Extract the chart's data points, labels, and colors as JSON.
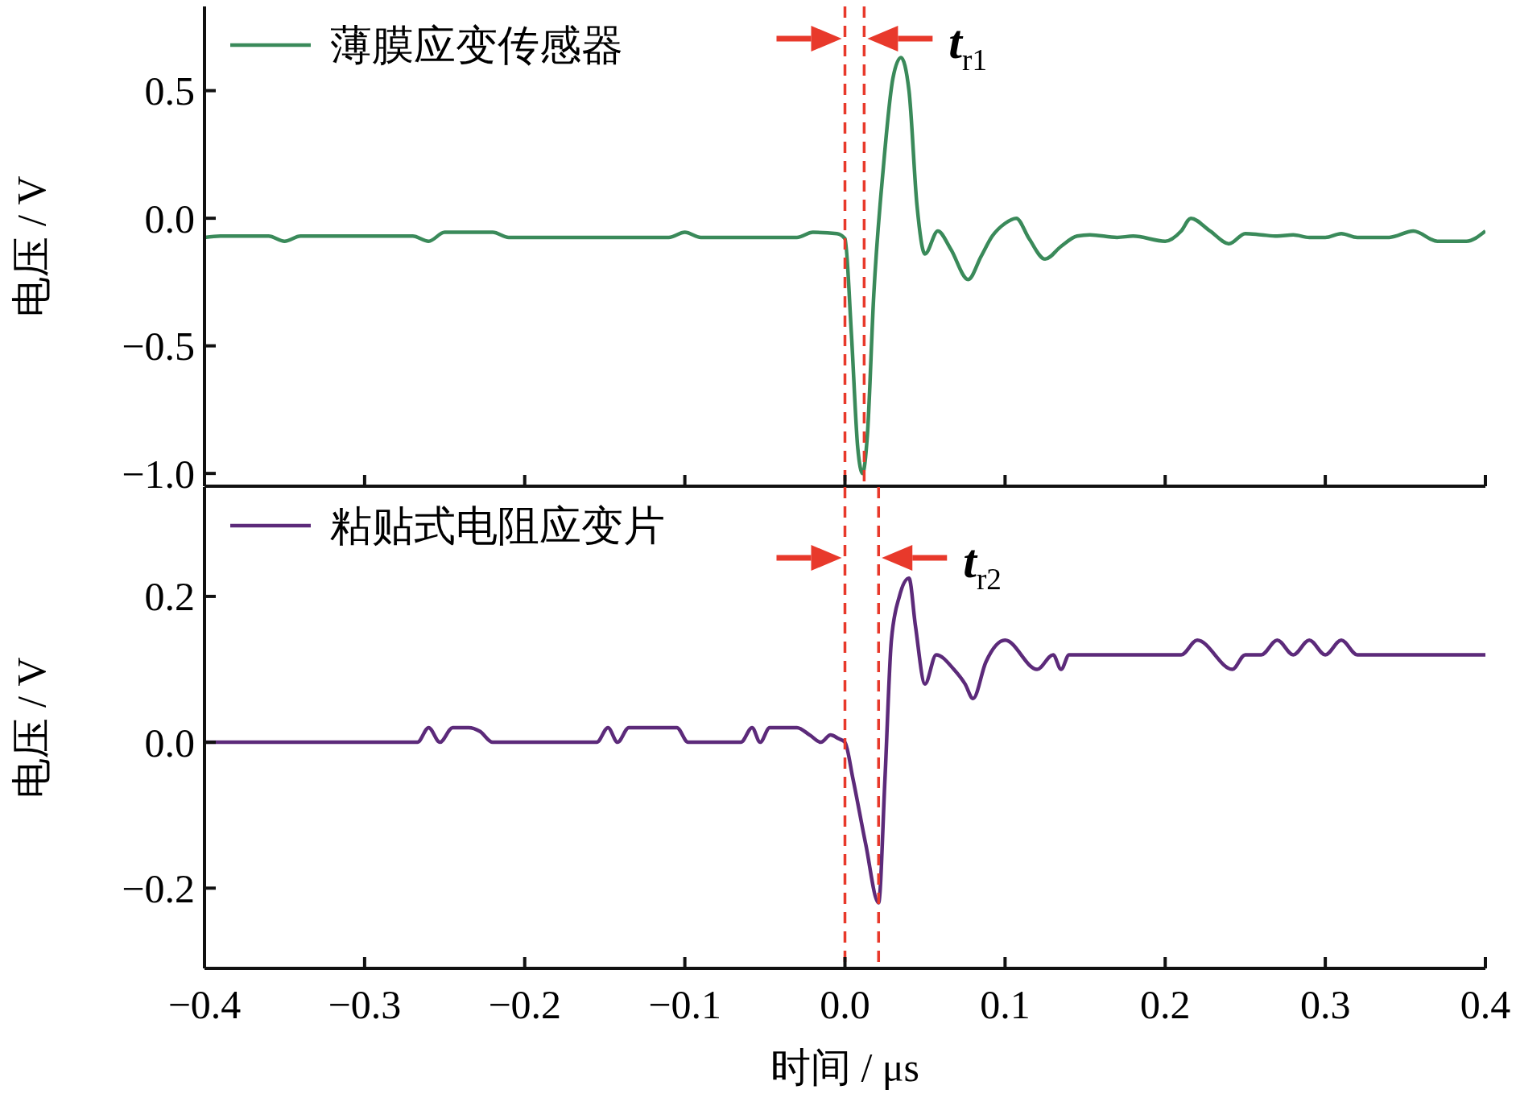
{
  "chart_data": [
    {
      "type": "line",
      "ylabel": "电压 / V",
      "xlim": [
        -0.4,
        0.4
      ],
      "xticks": [
        {
          "value": -0.4,
          "label": null
        },
        {
          "value": -0.3,
          "label": null
        },
        {
          "value": -0.2,
          "label": null
        },
        {
          "value": -0.1,
          "label": null
        },
        {
          "value": 0,
          "label": null
        },
        {
          "value": 0.1,
          "label": null
        },
        {
          "value": 0.2,
          "label": null
        },
        {
          "value": 0.3,
          "label": null
        },
        {
          "value": 0.4,
          "label": null
        }
      ],
      "ylim": [
        -1.05,
        0.83
      ],
      "yticks": [
        {
          "value": -1,
          "label": "−1.0"
        },
        {
          "value": -0.5,
          "label": "−0.5"
        },
        {
          "value": 0,
          "label": "0.0"
        },
        {
          "value": 0.5,
          "label": "0.5"
        }
      ],
      "tick_labels": "y",
      "legend": "top left",
      "ref_lines": [
        {
          "axis": "x",
          "value": 0,
          "color": "#e8392b",
          "line_style": "dashed"
        },
        {
          "axis": "x",
          "value": 0.012,
          "color": "#e8392b",
          "line_style": "dashed"
        }
      ],
      "annotations": [
        "t$_{r1}$"
      ],
      "series": [
        {
          "name": "薄膜应变传感器",
          "color": "#3a8a5a",
          "x": [
            -0.4,
            -0.39,
            -0.36,
            -0.35,
            -0.34,
            -0.27,
            -0.26,
            -0.25,
            -0.24,
            -0.22,
            -0.21,
            -0.11,
            -0.1,
            -0.09,
            -0.03,
            -0.02,
            -0.005,
            0,
            0.004,
            0.008,
            0.011,
            0.014,
            0.018,
            0.024,
            0.03,
            0.035,
            0.04,
            0.045,
            0.05,
            0.058,
            0.066,
            0.077,
            0.085,
            0.092,
            0.1,
            0.107,
            0.115,
            0.125,
            0.135,
            0.145,
            0.153,
            0.17,
            0.18,
            0.2,
            0.21,
            0.216,
            0.228,
            0.24,
            0.25,
            0.26,
            0.27,
            0.28,
            0.29,
            0.3,
            0.31,
            0.32,
            0.34,
            0.355,
            0.37,
            0.388,
            0.4
          ],
          "values": [
            -0.075,
            -0.07,
            -0.07,
            -0.09,
            -0.07,
            -0.07,
            -0.09,
            -0.055,
            -0.055,
            -0.055,
            -0.075,
            -0.075,
            -0.055,
            -0.075,
            -0.075,
            -0.055,
            -0.06,
            -0.08,
            -0.45,
            -0.9,
            -1.0,
            -0.85,
            -0.3,
            0.2,
            0.55,
            0.63,
            0.5,
            0.05,
            -0.14,
            -0.05,
            -0.12,
            -0.24,
            -0.15,
            -0.07,
            -0.02,
            0.0,
            -0.08,
            -0.16,
            -0.11,
            -0.07,
            -0.065,
            -0.075,
            -0.07,
            -0.09,
            -0.05,
            -0.0,
            -0.05,
            -0.1,
            -0.06,
            -0.065,
            -0.07,
            -0.065,
            -0.075,
            -0.075,
            -0.06,
            -0.075,
            -0.075,
            -0.05,
            -0.09,
            -0.09,
            -0.05
          ]
        }
      ]
    },
    {
      "type": "line",
      "xlabel": "时间 / μs",
      "ylabel": "电压 / V",
      "xlim": [
        -0.4,
        0.4
      ],
      "xticks": [
        {
          "value": -0.4,
          "label": "−0.4"
        },
        {
          "value": -0.3,
          "label": "−0.3"
        },
        {
          "value": -0.2,
          "label": "−0.2"
        },
        {
          "value": -0.1,
          "label": "−0.1"
        },
        {
          "value": 0,
          "label": "0.0"
        },
        {
          "value": 0.1,
          "label": "0.1"
        },
        {
          "value": 0.2,
          "label": "0.2"
        },
        {
          "value": 0.3,
          "label": "0.3"
        },
        {
          "value": 0.4,
          "label": "0.4"
        }
      ],
      "ylim": [
        -0.31,
        0.35
      ],
      "yticks": [
        {
          "value": -0.2,
          "label": "−0.2"
        },
        {
          "value": 0,
          "label": "0.0"
        },
        {
          "value": 0.2,
          "label": "0.2"
        }
      ],
      "legend": "top left",
      "ref_lines": [
        {
          "axis": "x",
          "value": 0,
          "color": "#e8392b",
          "line_style": "dashed"
        },
        {
          "axis": "x",
          "value": 0.021,
          "color": "#e8392b",
          "line_style": "dashed"
        }
      ],
      "annotations": [
        "t$_{r2}$"
      ],
      "series": [
        {
          "name": "粘贴式电阻应变片",
          "color": "#5c2a7a",
          "x": [
            -0.4,
            -0.267,
            -0.26,
            -0.253,
            -0.245,
            -0.235,
            -0.228,
            -0.22,
            -0.155,
            -0.148,
            -0.142,
            -0.135,
            -0.105,
            -0.098,
            -0.065,
            -0.058,
            -0.053,
            -0.047,
            -0.03,
            -0.022,
            -0.015,
            -0.009,
            -0.004,
            0,
            0.005,
            0.013,
            0.021,
            0.025,
            0.029,
            0.034,
            0.04,
            0.044,
            0.05,
            0.057,
            0.068,
            0.075,
            0.08,
            0.088,
            0.1,
            0.12,
            0.13,
            0.135,
            0.14,
            0.15,
            0.21,
            0.22,
            0.242,
            0.25,
            0.26,
            0.27,
            0.28,
            0.29,
            0.3,
            0.31,
            0.32,
            0.4
          ],
          "values": [
            0,
            0,
            0.02,
            0.0,
            0.02,
            0.02,
            0.015,
            0.0,
            0.0,
            0.02,
            0.0,
            0.02,
            0.02,
            0.0,
            0.0,
            0.02,
            0.0,
            0.02,
            0.02,
            0.01,
            0.0,
            0.01,
            0.005,
            0.0,
            -0.05,
            -0.14,
            -0.22,
            -0.05,
            0.14,
            0.2,
            0.225,
            0.16,
            0.08,
            0.12,
            0.1,
            0.08,
            0.06,
            0.11,
            0.14,
            0.1,
            0.12,
            0.1,
            0.12,
            0.12,
            0.12,
            0.14,
            0.1,
            0.12,
            0.12,
            0.14,
            0.12,
            0.14,
            0.12,
            0.14,
            0.12,
            0.12
          ]
        }
      ]
    }
  ]
}
